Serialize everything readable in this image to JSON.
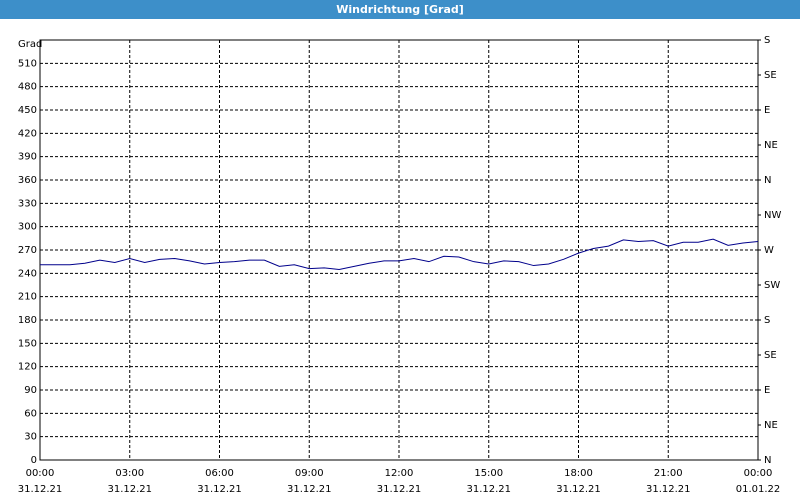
{
  "chart_data": {
    "type": "line",
    "title": "Windrichtung [Grad]",
    "y_label": "Grad",
    "x": [
      0,
      0.5,
      1,
      1.5,
      2,
      2.5,
      3,
      3.5,
      4,
      4.5,
      5,
      5.5,
      6,
      6.5,
      7,
      7.5,
      8,
      8.5,
      9,
      9.5,
      10,
      10.5,
      11,
      11.5,
      12,
      12.5,
      13,
      13.5,
      14,
      14.5,
      15,
      15.5,
      16,
      16.5,
      17,
      17.5,
      18,
      18.5,
      19,
      19.5,
      20,
      20.5,
      21,
      21.5,
      22,
      22.5,
      23,
      23.5,
      24
    ],
    "series": [
      {
        "name": "Windrichtung",
        "color": "#00008b",
        "values": [
          251,
          251,
          251,
          253,
          257,
          254,
          259,
          254,
          258,
          259,
          256,
          252,
          254,
          255,
          257,
          257,
          249,
          251,
          246,
          247,
          245,
          249,
          253,
          256,
          256,
          259,
          255,
          262,
          261,
          255,
          252,
          256,
          255,
          250,
          252,
          258,
          266,
          272,
          275,
          283,
          281,
          282,
          275,
          280,
          280,
          284,
          276,
          279,
          281
        ]
      }
    ],
    "xlim": [
      0,
      24
    ],
    "xticks": [
      {
        "value": 0,
        "label": "00:00"
      },
      {
        "value": 3,
        "label": "03:00"
      },
      {
        "value": 6,
        "label": "06:00"
      },
      {
        "value": 9,
        "label": "09:00"
      },
      {
        "value": 12,
        "label": "12:00"
      },
      {
        "value": 15,
        "label": "15:00"
      },
      {
        "value": 18,
        "label": "18:00"
      },
      {
        "value": 21,
        "label": "21:00"
      },
      {
        "value": 24,
        "label": "00:00"
      }
    ],
    "xtick_dates": [
      "31.12.21",
      "31.12.21",
      "31.12.21",
      "31.12.21",
      "31.12.21",
      "31.12.21",
      "31.12.21",
      "31.12.21",
      "01.01.22"
    ],
    "ylim": [
      0,
      540
    ],
    "yticks": [
      0,
      30,
      60,
      90,
      120,
      150,
      180,
      210,
      240,
      270,
      300,
      330,
      360,
      390,
      420,
      450,
      480,
      510
    ],
    "y2lim": [
      0,
      540
    ],
    "y2ticks": [
      {
        "value": 0,
        "label": "N"
      },
      {
        "value": 45,
        "label": "NE"
      },
      {
        "value": 90,
        "label": "E"
      },
      {
        "value": 135,
        "label": "SE"
      },
      {
        "value": 180,
        "label": "S"
      },
      {
        "value": 225,
        "label": "SW"
      },
      {
        "value": 270,
        "label": "W"
      },
      {
        "value": 315,
        "label": "NW"
      },
      {
        "value": 360,
        "label": "N"
      },
      {
        "value": 405,
        "label": "NE"
      },
      {
        "value": 450,
        "label": "E"
      },
      {
        "value": 495,
        "label": "SE"
      },
      {
        "value": 540,
        "label": "S"
      }
    ],
    "grid": true
  }
}
